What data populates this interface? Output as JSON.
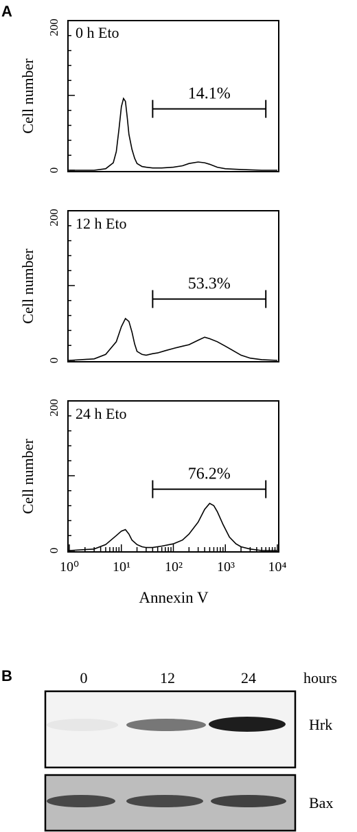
{
  "panel_a": {
    "letter": "A"
  },
  "panel_b": {
    "letter": "B",
    "lanes": [
      "0",
      "12",
      "24"
    ],
    "lane_unit": "hours",
    "blots": [
      {
        "label": "Hrk",
        "band_intensity": [
          0.05,
          0.55,
          0.95
        ]
      },
      {
        "label": "Bax",
        "band_intensity": [
          0.75,
          0.75,
          0.8
        ]
      }
    ]
  },
  "chart_data": [
    {
      "type": "line",
      "title": "0 h Eto",
      "xlabel": "",
      "ylabel": "Cell number",
      "x_scale": "log",
      "xlim": [
        1,
        10000
      ],
      "ylim": [
        0,
        200
      ],
      "y_ticks": [
        "0",
        "200"
      ],
      "gate": {
        "from": 40,
        "to": 6000,
        "label": "14.1%"
      },
      "series": [
        {
          "x": [
            1,
            3,
            5,
            7,
            8,
            9,
            10,
            11,
            12,
            13,
            14,
            16,
            18,
            20,
            25,
            30,
            40,
            60,
            100,
            150,
            200,
            300,
            400,
            500,
            700,
            1000,
            2000,
            5000,
            10000
          ],
          "y": [
            0,
            0,
            2,
            10,
            25,
            55,
            85,
            96,
            92,
            70,
            48,
            28,
            16,
            9,
            5,
            4,
            3,
            3,
            4,
            6,
            9,
            11,
            10,
            8,
            4,
            2,
            1,
            0,
            0
          ]
        }
      ]
    },
    {
      "type": "line",
      "title": "12 h Eto",
      "xlabel": "",
      "ylabel": "Cell number",
      "x_scale": "log",
      "xlim": [
        1,
        10000
      ],
      "ylim": [
        0,
        200
      ],
      "y_ticks": [
        "0",
        "200"
      ],
      "gate": {
        "from": 40,
        "to": 6000,
        "label": "53.3%"
      },
      "series": [
        {
          "x": [
            1,
            3,
            5,
            8,
            10,
            12,
            14,
            16,
            18,
            20,
            25,
            30,
            40,
            50,
            70,
            100,
            150,
            200,
            300,
            400,
            500,
            700,
            1000,
            1500,
            2000,
            3000,
            5000,
            10000
          ],
          "y": [
            0,
            2,
            8,
            25,
            45,
            56,
            52,
            38,
            22,
            12,
            8,
            7,
            9,
            10,
            13,
            16,
            19,
            21,
            27,
            31,
            29,
            25,
            19,
            12,
            7,
            3,
            1,
            0
          ]
        }
      ]
    },
    {
      "type": "line",
      "title": "24 h Eto",
      "xlabel": "Annexin V",
      "ylabel": "Cell number",
      "x_scale": "log",
      "xlim": [
        1,
        10000
      ],
      "ylim": [
        0,
        200
      ],
      "y_ticks": [
        "0",
        "200"
      ],
      "x_ticks": [
        "10⁰",
        "10¹",
        "10²",
        "10³",
        "10⁴"
      ],
      "gate": {
        "from": 40,
        "to": 6000,
        "label": "76.2%"
      },
      "series": [
        {
          "x": [
            1,
            3,
            5,
            8,
            10,
            12,
            14,
            16,
            20,
            25,
            30,
            40,
            60,
            100,
            150,
            200,
            300,
            400,
            500,
            600,
            700,
            900,
            1200,
            1600,
            2000,
            3000,
            5000,
            10000
          ],
          "y": [
            0,
            2,
            8,
            20,
            26,
            28,
            22,
            14,
            8,
            5,
            4,
            4,
            6,
            9,
            14,
            22,
            38,
            55,
            63,
            60,
            52,
            35,
            18,
            9,
            5,
            2,
            0,
            0
          ]
        }
      ]
    }
  ]
}
